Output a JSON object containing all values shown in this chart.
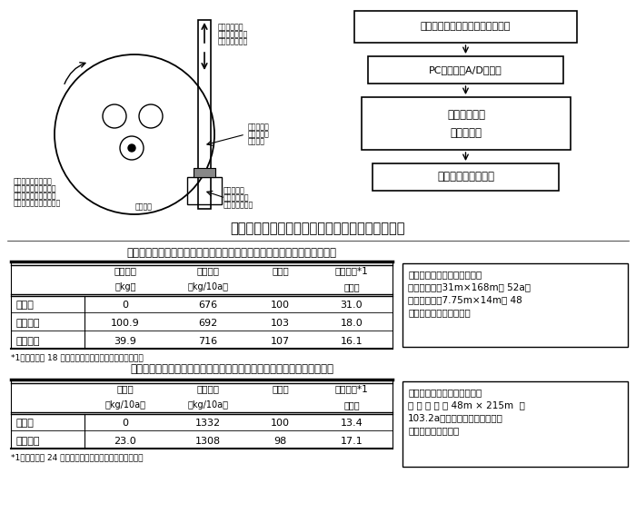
{
  "fig_caption": "図２　ポテンショメータの取り付けとモニタ表示",
  "table1_title": "表１　供試施肥機（広幅追肥）を用いたイタリアンライグラスの収量結果",
  "table1_headers_line1": [
    "追肥総量",
    "乾物収量",
    "収量比",
    "変動係数*1"
  ],
  "table1_headers_line2": [
    "（kg）",
    "（kg/10a）",
    "",
    "（％）"
  ],
  "table1_rows": [
    [
      "無施肥",
      "0",
      "676",
      "100",
      "31.0"
    ],
    [
      "全面追肥",
      "100.9",
      "692",
      "103",
      "18.0"
    ],
    [
      "部分追肥",
      "39.9",
      "716",
      "107",
      "16.1"
    ]
  ],
  "table1_footnote": "*1：処理区内 18 点の坪刈りデータの乾物収量から算出",
  "table1_note_lines": [
    "全面追肥、部分追肥区ともに",
    "圃場面積は、31m×168mの 52a。",
    "部分施肥は、7.75m×14mの 48",
    "区画に分割して行った。"
  ],
  "table2_title": "表２　供試施肥機（側条追肥）を用いた飼料用トウモロコシの収量結果",
  "table2_headers_line1": [
    "追肥量",
    "乾物収量",
    "収量比",
    "変動係数*1"
  ],
  "table2_headers_line2": [
    "（kg/10a）",
    "（kg/10a）",
    "",
    "（％）"
  ],
  "table2_rows": [
    [
      "無施肥",
      "0",
      "1332",
      "100",
      "13.4"
    ],
    [
      "全面追肥",
      "23.0",
      "1308",
      "98",
      "17.1"
    ]
  ],
  "table2_footnote": "*1：処理区内 24 点の坪刈りデータの乾物収量から算出",
  "table2_note_lines": [
    "無施肥、全面追肥区ともに圃",
    "場 面 積 は 、 48m × 215m  の",
    "103.2a。栽培調査の関係から、",
    "全面追肥を行った。"
  ],
  "bg_color": "#ffffff",
  "diag_label_top": [
    "電動シリンダ",
    "によりシャッタ",
    "の開閉を行う。"
  ],
  "diag_label_stroke": [
    "ストローク",
    "ポテンショ",
    "メーター"
  ],
  "diag_label_rotate": "回転する",
  "diag_label_change": [
    "この部分が",
    "前後して抵抗",
    "値が変化する。"
  ],
  "diag_label_broad": [
    "ブロードキャスタの",
    "目盛がある部分。回転",
    "させることによりシャ",
    "ッターの開閉をさせる。"
  ],
  "block_pc": "パソコンに取り込んでモニタ表示",
  "block_card": "PCカード型A/D変換器",
  "block_circuit_line1": "電圧補正回路",
  "block_circuit_line2": "安定化電源",
  "block_pot": "ポテンショメーター"
}
